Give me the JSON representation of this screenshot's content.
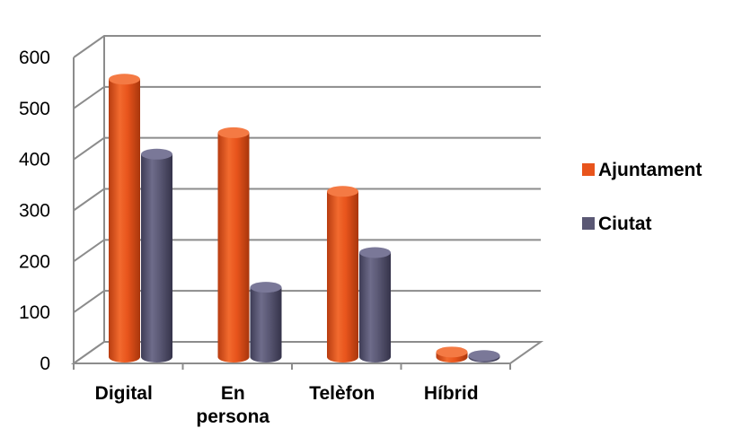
{
  "chart_data": {
    "type": "bar",
    "categories": [
      "Digital",
      "En persona",
      "Telèfon",
      "Híbrid"
    ],
    "series": [
      {
        "name": "Ajuntament",
        "values": [
          545,
          440,
          325,
          10
        ],
        "color": "#e8541c"
      },
      {
        "name": "Ciutat",
        "values": [
          398,
          137,
          205,
          3
        ],
        "color": "#5a5874"
      }
    ],
    "ylim": [
      0,
      600
    ],
    "yticks": [
      0,
      100,
      200,
      300,
      400,
      500,
      600
    ],
    "grid": true,
    "legend_position": "right",
    "style": "3d-cylinder"
  }
}
